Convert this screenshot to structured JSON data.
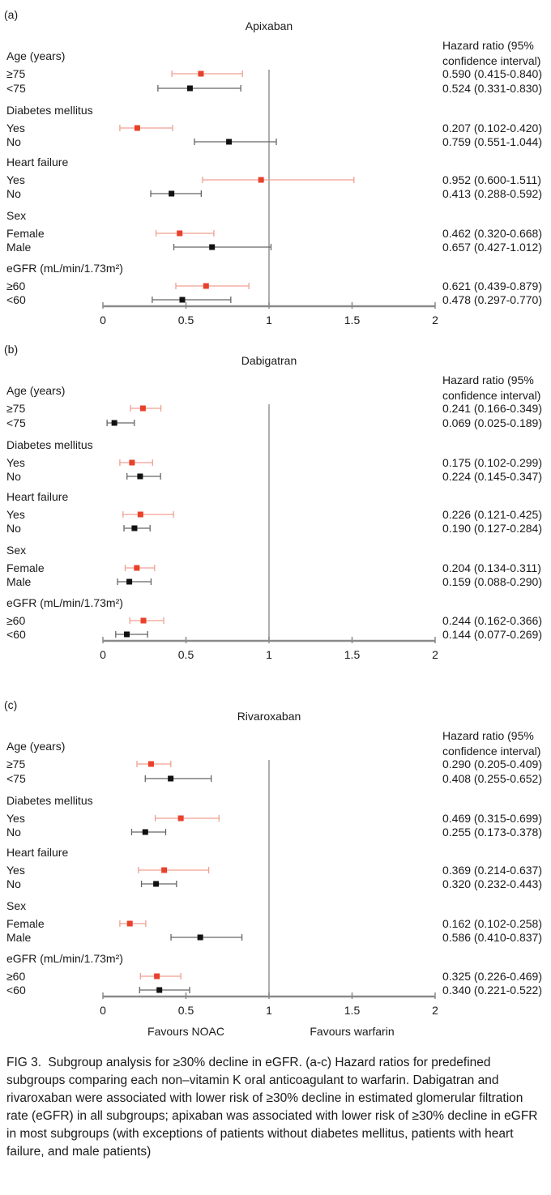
{
  "chart_data": [
    {
      "type": "forest",
      "panel_label": "(a)",
      "title": "Apixaban",
      "column_header": [
        "Hazard ratio (95%",
        "confidence interval)"
      ],
      "xlim": [
        0,
        2
      ],
      "x_ticks": [
        "0",
        "0.5",
        "1",
        "1.5",
        "2"
      ],
      "reference_line": 1,
      "grid": false,
      "groups": [
        {
          "label": "Age (years)",
          "rows": [
            {
              "label": "≥75",
              "hr": 0.59,
              "lo": 0.415,
              "hi": 0.84,
              "text": "0.590 (0.415-0.840)",
              "color": "#e8412c"
            },
            {
              "label": "<75",
              "hr": 0.524,
              "lo": 0.331,
              "hi": 0.83,
              "text": "0.524 (0.331-0.830)",
              "color": "#111111"
            }
          ]
        },
        {
          "label": "Diabetes mellitus",
          "rows": [
            {
              "label": "Yes",
              "hr": 0.207,
              "lo": 0.102,
              "hi": 0.42,
              "text": "0.207 (0.102-0.420)",
              "color": "#e8412c"
            },
            {
              "label": "No",
              "hr": 0.759,
              "lo": 0.551,
              "hi": 1.044,
              "text": "0.759 (0.551-1.044)",
              "color": "#111111"
            }
          ]
        },
        {
          "label": "Heart failure",
          "rows": [
            {
              "label": "Yes",
              "hr": 0.952,
              "lo": 0.6,
              "hi": 1.511,
              "text": "0.952 (0.600-1.511)",
              "color": "#e8412c"
            },
            {
              "label": "No",
              "hr": 0.413,
              "lo": 0.288,
              "hi": 0.592,
              "text": "0.413 (0.288-0.592)",
              "color": "#111111"
            }
          ]
        },
        {
          "label": "Sex",
          "rows": [
            {
              "label": "Female",
              "hr": 0.462,
              "lo": 0.32,
              "hi": 0.668,
              "text": "0.462 (0.320-0.668)",
              "color": "#e8412c"
            },
            {
              "label": "Male",
              "hr": 0.657,
              "lo": 0.427,
              "hi": 1.012,
              "text": "0.657 (0.427-1.012)",
              "color": "#111111"
            }
          ]
        },
        {
          "label": "eGFR (mL/min/1.73m²)",
          "rows": [
            {
              "label": "≥60",
              "hr": 0.621,
              "lo": 0.439,
              "hi": 0.879,
              "text": "0.621 (0.439-0.879)",
              "color": "#e8412c"
            },
            {
              "label": "<60",
              "hr": 0.478,
              "lo": 0.297,
              "hi": 0.77,
              "text": "0.478 (0.297-0.770)",
              "color": "#111111"
            }
          ]
        }
      ]
    },
    {
      "type": "forest",
      "panel_label": "(b)",
      "title": "Dabigatran",
      "column_header": [
        "Hazard ratio (95%",
        "confidence interval)"
      ],
      "xlim": [
        0,
        2
      ],
      "x_ticks": [
        "0",
        "0.5",
        "1",
        "1.5",
        "2"
      ],
      "reference_line": 1,
      "grid": false,
      "groups": [
        {
          "label": "Age (years)",
          "rows": [
            {
              "label": "≥75",
              "hr": 0.241,
              "lo": 0.166,
              "hi": 0.349,
              "text": "0.241 (0.166-0.349)",
              "color": "#e8412c"
            },
            {
              "label": "<75",
              "hr": 0.069,
              "lo": 0.025,
              "hi": 0.189,
              "text": "0.069 (0.025-0.189)",
              "color": "#111111"
            }
          ]
        },
        {
          "label": "Diabetes mellitus",
          "rows": [
            {
              "label": "Yes",
              "hr": 0.175,
              "lo": 0.102,
              "hi": 0.299,
              "text": "0.175 (0.102-0.299)",
              "color": "#e8412c"
            },
            {
              "label": "No",
              "hr": 0.224,
              "lo": 0.145,
              "hi": 0.347,
              "text": "0.224 (0.145-0.347)",
              "color": "#111111"
            }
          ]
        },
        {
          "label": "Heart failure",
          "rows": [
            {
              "label": "Yes",
              "hr": 0.226,
              "lo": 0.121,
              "hi": 0.425,
              "text": "0.226 (0.121-0.425)",
              "color": "#e8412c"
            },
            {
              "label": "No",
              "hr": 0.19,
              "lo": 0.127,
              "hi": 0.284,
              "text": "0.190 (0.127-0.284)",
              "color": "#111111"
            }
          ]
        },
        {
          "label": "Sex",
          "rows": [
            {
              "label": "Female",
              "hr": 0.204,
              "lo": 0.134,
              "hi": 0.311,
              "text": "0.204 (0.134-0.311)",
              "color": "#e8412c"
            },
            {
              "label": "Male",
              "hr": 0.159,
              "lo": 0.088,
              "hi": 0.29,
              "text": "0.159 (0.088-0.290)",
              "color": "#111111"
            }
          ]
        },
        {
          "label": "eGFR (mL/min/1.73m²)",
          "rows": [
            {
              "label": "≥60",
              "hr": 0.244,
              "lo": 0.162,
              "hi": 0.366,
              "text": "0.244 (0.162-0.366)",
              "color": "#e8412c"
            },
            {
              "label": "<60",
              "hr": 0.144,
              "lo": 0.077,
              "hi": 0.269,
              "text": "0.144 (0.077-0.269)",
              "color": "#111111"
            }
          ]
        }
      ]
    },
    {
      "type": "forest",
      "panel_label": "(c)",
      "title": "Rivaroxaban",
      "column_header": [
        "Hazard ratio (95%",
        "confidence interval)"
      ],
      "xlim": [
        0,
        2
      ],
      "x_ticks": [
        "0",
        "0.5",
        "1",
        "1.5",
        "2"
      ],
      "reference_line": 1,
      "grid": false,
      "footer_left": "Favours NOAC",
      "footer_right": "Favours warfarin",
      "groups": [
        {
          "label": "Age (years)",
          "rows": [
            {
              "label": "≥75",
              "hr": 0.29,
              "lo": 0.205,
              "hi": 0.409,
              "text": "0.290 (0.205-0.409)",
              "color": "#e8412c"
            },
            {
              "label": "<75",
              "hr": 0.408,
              "lo": 0.255,
              "hi": 0.652,
              "text": "0.408 (0.255-0.652)",
              "color": "#111111"
            }
          ]
        },
        {
          "label": "Diabetes mellitus",
          "rows": [
            {
              "label": "Yes",
              "hr": 0.469,
              "lo": 0.315,
              "hi": 0.699,
              "text": "0.469 (0.315-0.699)",
              "color": "#e8412c"
            },
            {
              "label": "No",
              "hr": 0.255,
              "lo": 0.173,
              "hi": 0.378,
              "text": "0.255 (0.173-0.378)",
              "color": "#111111"
            }
          ]
        },
        {
          "label": "Heart failure",
          "rows": [
            {
              "label": "Yes",
              "hr": 0.369,
              "lo": 0.214,
              "hi": 0.637,
              "text": "0.369 (0.214-0.637)",
              "color": "#e8412c"
            },
            {
              "label": "No",
              "hr": 0.32,
              "lo": 0.232,
              "hi": 0.443,
              "text": "0.320 (0.232-0.443)",
              "color": "#111111"
            }
          ]
        },
        {
          "label": "Sex",
          "rows": [
            {
              "label": "Female",
              "hr": 0.162,
              "lo": 0.102,
              "hi": 0.258,
              "text": "0.162 (0.102-0.258)",
              "color": "#e8412c"
            },
            {
              "label": "Male",
              "hr": 0.586,
              "lo": 0.41,
              "hi": 0.837,
              "text": "0.586 (0.410-0.837)",
              "color": "#111111"
            }
          ]
        },
        {
          "label": "eGFR (mL/min/1.73m²)",
          "rows": [
            {
              "label": "≥60",
              "hr": 0.325,
              "lo": 0.226,
              "hi": 0.469,
              "text": "0.325 (0.226-0.469)",
              "color": "#e8412c"
            },
            {
              "label": "<60",
              "hr": 0.34,
              "lo": 0.221,
              "hi": 0.522,
              "text": "0.340 (0.221-0.522)",
              "color": "#111111"
            }
          ]
        }
      ]
    }
  ],
  "caption": {
    "label": "FIG 3.",
    "text": "Subgroup analysis for ≥30% decline in eGFR. (a-c) Hazard ratios for predefined subgroups comparing each non–vitamin K oral anticoagulant to warfarin. Dabigatran and rivaroxaban were associated with lower risk of ≥30% decline in estimated glomerular filtration rate (eGFR) in all subgroups; apixaban was associated with lower risk of ≥30% decline in eGFR in most subgroups (with exceptions of patients without diabetes mellitus, patients with heart failure, and male patients)"
  }
}
